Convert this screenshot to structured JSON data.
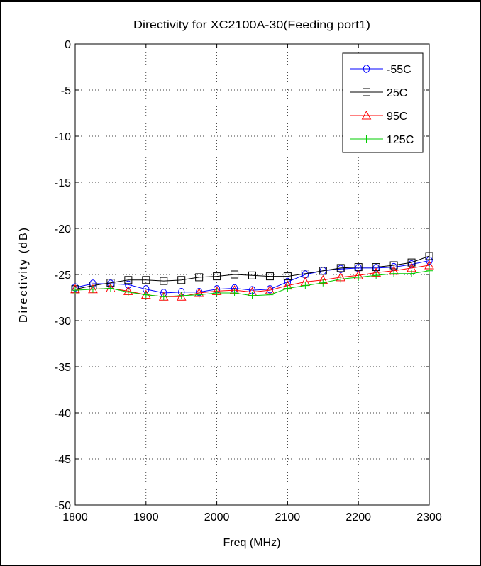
{
  "chart_data": {
    "type": "line",
    "title": "Directivity for XC2100A-30(Feeding port1)",
    "xlabel": "Freq (MHz)",
    "ylabel": "Directivity (dB)",
    "xlim": [
      1800,
      2300
    ],
    "ylim": [
      -50,
      0
    ],
    "xticks": [
      1800,
      1900,
      2000,
      2100,
      2200,
      2300
    ],
    "yticks": [
      0,
      -5,
      -10,
      -15,
      -20,
      -25,
      -30,
      -35,
      -40,
      -45,
      -50
    ],
    "grid": "dotted",
    "legend_position": "top-right",
    "x": [
      1800,
      1825,
      1850,
      1875,
      1900,
      1925,
      1950,
      1975,
      2000,
      2025,
      2050,
      2075,
      2100,
      2125,
      2150,
      2175,
      2200,
      2225,
      2250,
      2275,
      2300
    ],
    "series": [
      {
        "name": "-55C",
        "color": "#0000ff",
        "marker": "circle",
        "values": [
          -26.4,
          -26.0,
          -26.0,
          -26.1,
          -26.6,
          -27.0,
          -26.9,
          -26.9,
          -26.6,
          -26.5,
          -26.7,
          -26.6,
          -25.8,
          -25.0,
          -24.6,
          -24.4,
          -24.3,
          -24.3,
          -24.2,
          -23.9,
          -23.5
        ]
      },
      {
        "name": "25C",
        "color": "#000000",
        "marker": "square",
        "values": [
          -26.6,
          -26.2,
          -25.9,
          -25.6,
          -25.6,
          -25.7,
          -25.6,
          -25.3,
          -25.2,
          -25.0,
          -25.1,
          -25.2,
          -25.2,
          -24.9,
          -24.6,
          -24.3,
          -24.2,
          -24.2,
          -24.0,
          -23.7,
          -23.0
        ]
      },
      {
        "name": "95C",
        "color": "#ff0000",
        "marker": "triangle",
        "values": [
          -26.6,
          -26.6,
          -26.5,
          -26.8,
          -27.2,
          -27.4,
          -27.4,
          -27.0,
          -26.8,
          -26.7,
          -26.9,
          -26.7,
          -26.2,
          -25.8,
          -25.6,
          -25.3,
          -25.1,
          -24.8,
          -24.6,
          -24.3,
          -24.0
        ]
      },
      {
        "name": "125C",
        "color": "#00cc00",
        "marker": "plus",
        "values": [
          -26.7,
          -26.6,
          -26.5,
          -26.9,
          -27.2,
          -27.4,
          -27.3,
          -27.2,
          -27.0,
          -27.0,
          -27.3,
          -27.2,
          -26.5,
          -26.2,
          -25.9,
          -25.5,
          -25.3,
          -25.1,
          -24.9,
          -24.9,
          -24.6
        ]
      }
    ]
  }
}
